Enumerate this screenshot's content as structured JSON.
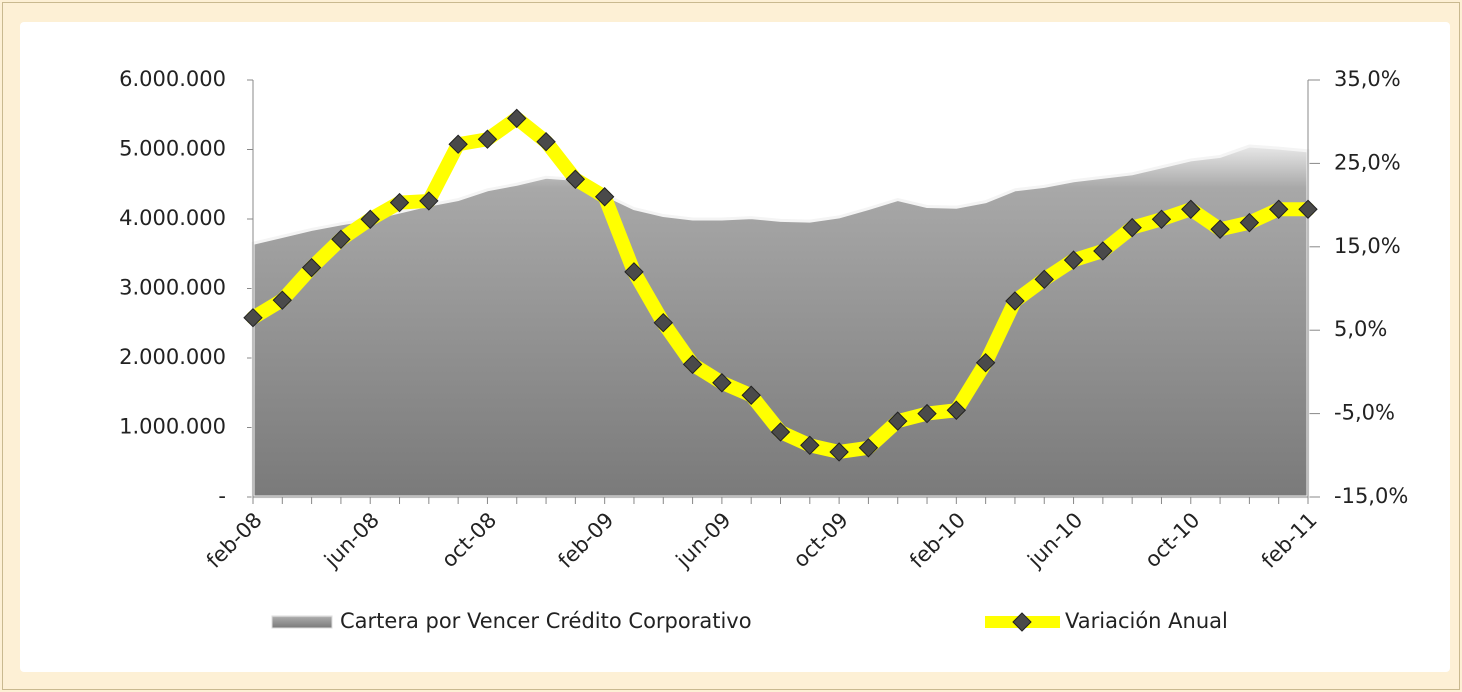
{
  "chart_data": {
    "type": "area-line",
    "categories": [
      "feb-08",
      null,
      null,
      null,
      "jun-08",
      null,
      null,
      null,
      "oct-08",
      null,
      null,
      null,
      "feb-09",
      null,
      null,
      null,
      "jun-09",
      null,
      null,
      null,
      "oct-09",
      null,
      null,
      null,
      "feb-10",
      null,
      null,
      null,
      "jun-10",
      null,
      null,
      null,
      "oct-10",
      null,
      null,
      null,
      "feb-11"
    ],
    "series": [
      {
        "name": "Cartera por Vencer Crédito Corporativo",
        "type": "area",
        "color": "#9a9a9a",
        "values": [
          3650000,
          3750000,
          3850000,
          3930000,
          4000000,
          4100000,
          4200000,
          4280000,
          4420000,
          4500000,
          4600000,
          4570000,
          4350000,
          4150000,
          4050000,
          4000000,
          4000000,
          4020000,
          3980000,
          3970000,
          4030000,
          4150000,
          4280000,
          4180000,
          4170000,
          4250000,
          4420000,
          4470000,
          4550000,
          4600000,
          4650000,
          4750000,
          4850000,
          4900000,
          5050000,
          5020000,
          4980000
        ]
      },
      {
        "name": "Variación Anual",
        "type": "line",
        "axis": "y2",
        "color": "#ffff00",
        "marker_color": "#4a4a4a",
        "values": [
          6.5,
          8.6,
          12.5,
          15.9,
          18.3,
          20.3,
          20.5,
          27.3,
          27.9,
          30.4,
          27.6,
          23.1,
          21.0,
          12.0,
          5.9,
          0.9,
          -1.3,
          -2.8,
          -7.2,
          -8.8,
          -9.6,
          -9.1,
          -5.9,
          -5.0,
          -4.6,
          1.1,
          8.5,
          11.1,
          13.4,
          14.5,
          17.3,
          18.3,
          19.5,
          17.1,
          17.9,
          19.5,
          19.5
        ]
      }
    ],
    "ylim": [
      0,
      6000000
    ],
    "yticks": [
      {
        "value": 0,
        "label": "-"
      },
      {
        "value": 1000000,
        "label": "1.000.000"
      },
      {
        "value": 2000000,
        "label": "2.000.000"
      },
      {
        "value": 3000000,
        "label": "3.000.000"
      },
      {
        "value": 4000000,
        "label": "4.000.000"
      },
      {
        "value": 5000000,
        "label": "5.000.000"
      },
      {
        "value": 6000000,
        "label": "6.000.000"
      }
    ],
    "y2lim": [
      -15,
      35
    ],
    "y2ticks": [
      {
        "value": -15,
        "label": "-15,0%"
      },
      {
        "value": -5,
        "label": "-5,0%"
      },
      {
        "value": 5,
        "label": "5,0%"
      },
      {
        "value": 15,
        "label": "15,0%"
      },
      {
        "value": 25,
        "label": "25,0%"
      },
      {
        "value": 35,
        "label": "35,0%"
      }
    ],
    "legend": "bottom"
  }
}
